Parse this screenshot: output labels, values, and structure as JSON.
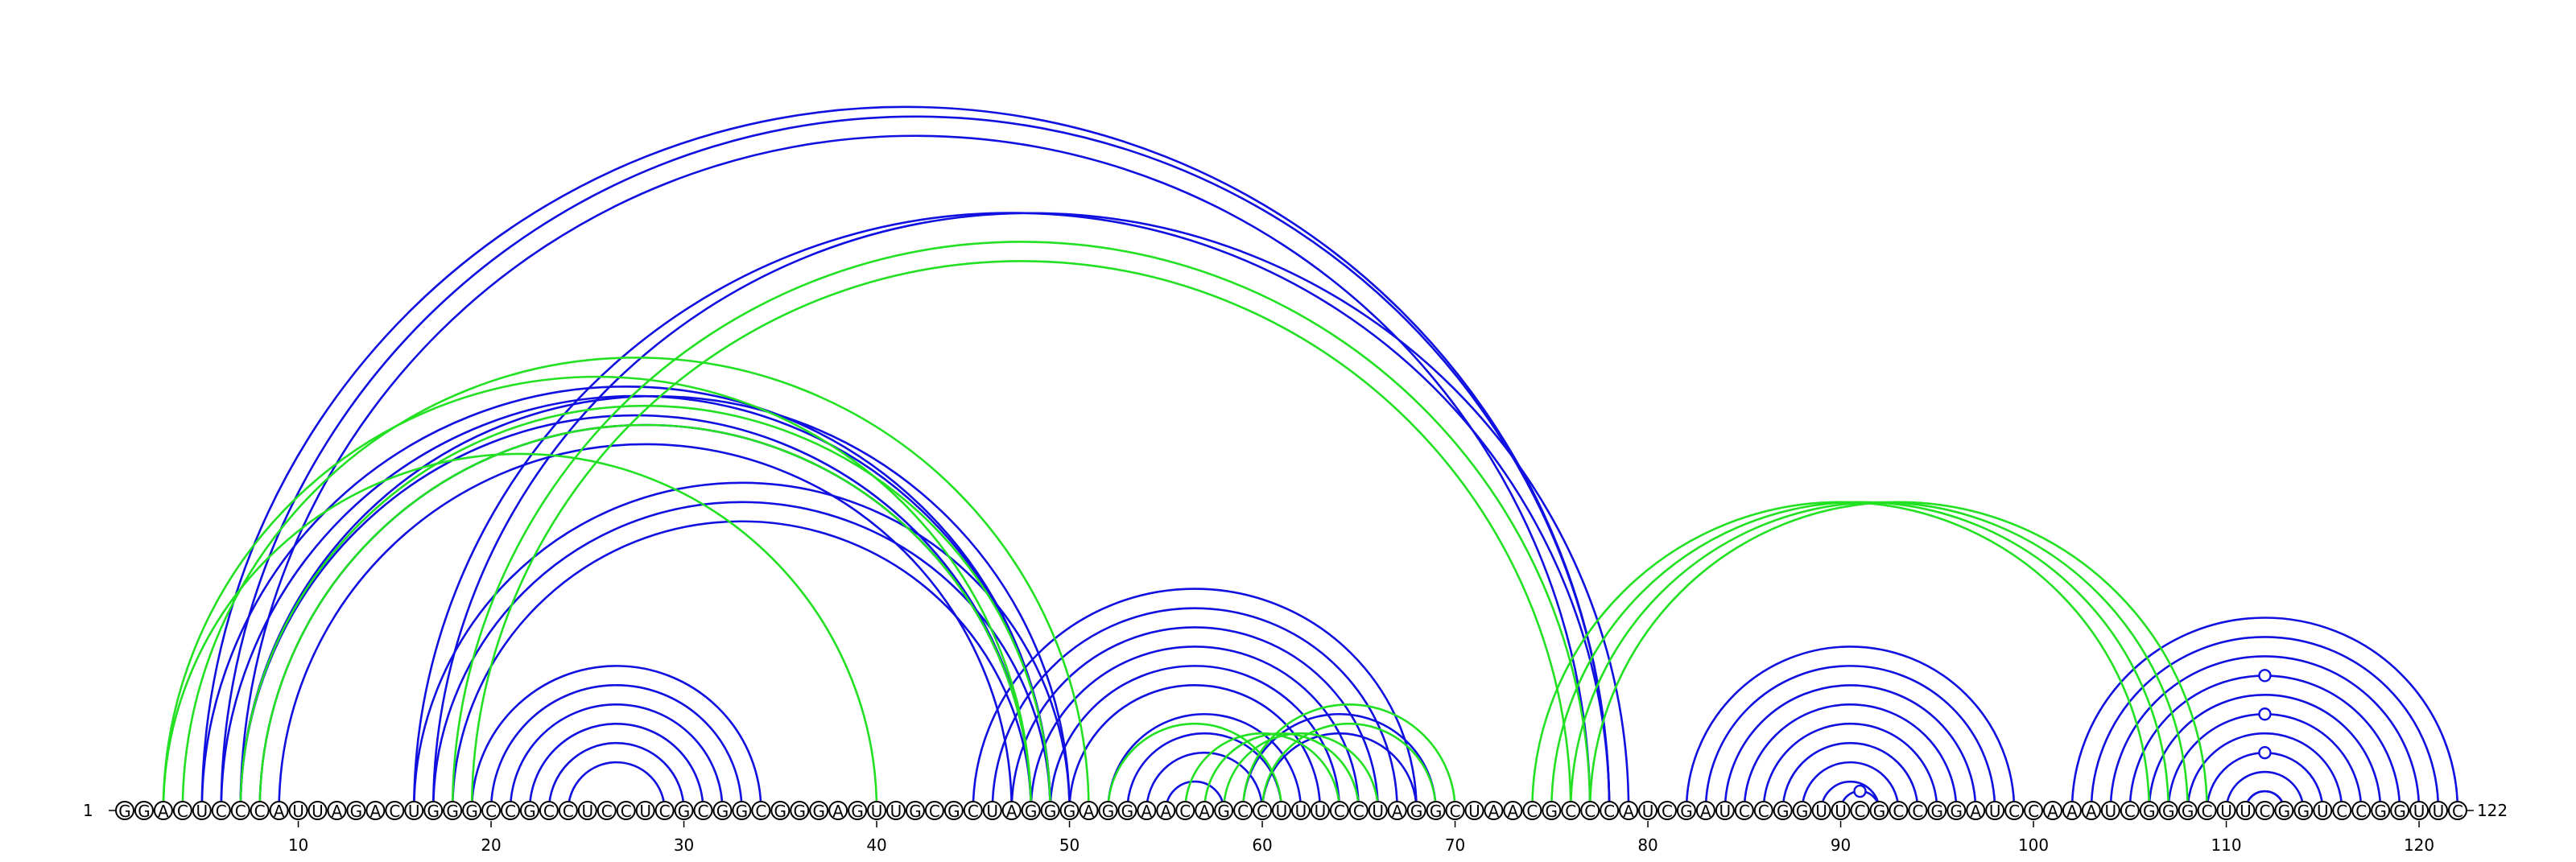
{
  "sequence": "GGACUCCCAUUAGACUGGGCCGCCUCCUCGCGGCGGGAGUUGCGCUAGGGAGGAACAGCCUUUCCUAGGCUAACGCCCAUCGAUCCGGUUCGCCGGAUCCAAAUCGGGCUUCGGUCCGGUUC",
  "length": 122,
  "start_label": "1",
  "end_label": "122",
  "tick_labels": [
    "10",
    "20",
    "30",
    "40",
    "50",
    "60",
    "70",
    "80",
    "90",
    "100",
    "110",
    "120"
  ],
  "colors": {
    "blue": "#1010e0",
    "green": "#22e022",
    "circle_stroke": "#000000"
  },
  "blue_pairs": [
    [
      5,
      78
    ],
    [
      6,
      78
    ],
    [
      7,
      77
    ],
    [
      7,
      48
    ],
    [
      8,
      48
    ],
    [
      9,
      47
    ],
    [
      5,
      49
    ],
    [
      6,
      49
    ],
    [
      7,
      50
    ],
    [
      16,
      50
    ],
    [
      17,
      49
    ],
    [
      18,
      48
    ],
    [
      16,
      78
    ],
    [
      17,
      79
    ],
    [
      19,
      34
    ],
    [
      20,
      33
    ],
    [
      21,
      32
    ],
    [
      22,
      31
    ],
    [
      23,
      30
    ],
    [
      24,
      29
    ],
    [
      45,
      68
    ],
    [
      46,
      67
    ],
    [
      47,
      66
    ],
    [
      48,
      65
    ],
    [
      49,
      64
    ],
    [
      50,
      63
    ],
    [
      52,
      62
    ],
    [
      53,
      61
    ],
    [
      54,
      60
    ],
    [
      55,
      58
    ],
    [
      59,
      69
    ],
    [
      60,
      68
    ],
    [
      82,
      99
    ],
    [
      83,
      98
    ],
    [
      84,
      97
    ],
    [
      85,
      96
    ],
    [
      86,
      95
    ],
    [
      87,
      94
    ],
    [
      88,
      93
    ],
    [
      89,
      92
    ],
    [
      90,
      92
    ],
    [
      102,
      122
    ],
    [
      103,
      121
    ],
    [
      104,
      120
    ],
    [
      105,
      119
    ],
    [
      106,
      118
    ],
    [
      107,
      117
    ],
    [
      108,
      116
    ],
    [
      109,
      115
    ],
    [
      110,
      114
    ],
    [
      111,
      113
    ],
    [
      111,
      113
    ],
    [
      111,
      113
    ]
  ],
  "green_pairs": [
    [
      3,
      48
    ],
    [
      4,
      51
    ],
    [
      7,
      49
    ],
    [
      8,
      48
    ],
    [
      3,
      40
    ],
    [
      18,
      77
    ],
    [
      19,
      76
    ],
    [
      52,
      61
    ],
    [
      56,
      64
    ],
    [
      57,
      65
    ],
    [
      58,
      66
    ],
    [
      59,
      70
    ],
    [
      60,
      69
    ],
    [
      74,
      106
    ],
    [
      75,
      107
    ],
    [
      76,
      108
    ],
    [
      77,
      109
    ]
  ],
  "markers": [
    91,
    111,
    111,
    111
  ]
}
